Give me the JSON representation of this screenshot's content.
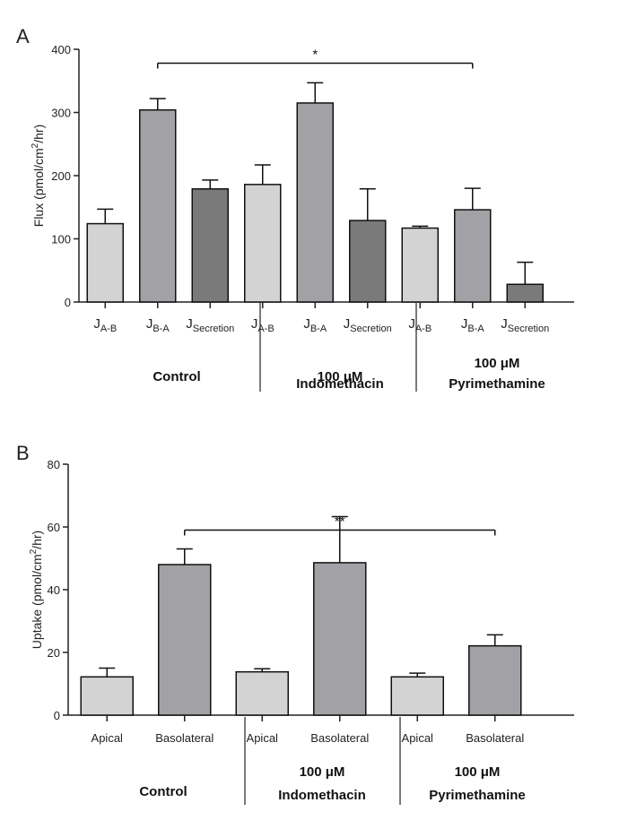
{
  "chart_data": [
    {
      "type": "bar",
      "panel": "A",
      "ylabel": "Flux (pmol/cm2/hr)",
      "ylabel_parts": {
        "pre": "Flux (pmol/cm",
        "sup": "2",
        "post": "/hr)"
      },
      "ylim": [
        0,
        400
      ],
      "yticks": [
        0,
        100,
        200,
        300,
        400
      ],
      "categories": [
        {
          "main": "J",
          "sub": "A-B"
        },
        {
          "main": "J",
          "sub": "B-A"
        },
        {
          "main": "J",
          "sub": "Secretion"
        },
        {
          "main": "J",
          "sub": "A-B"
        },
        {
          "main": "J",
          "sub": "B-A"
        },
        {
          "main": "J",
          "sub": "Secretion"
        },
        {
          "main": "J",
          "sub": "A-B"
        },
        {
          "main": "J",
          "sub": "B-A"
        },
        {
          "main": "J",
          "sub": "Secretion"
        }
      ],
      "values": [
        124,
        304,
        179,
        186,
        315,
        129,
        117,
        146,
        28
      ],
      "errors": [
        23,
        18,
        14,
        31,
        32,
        50,
        3,
        34,
        35
      ],
      "bar_colors": [
        "#d3d3d3",
        "#a2a2a6",
        "#7a7a7a",
        "#d3d3d3",
        "#a2a2a6",
        "#7a7a7a",
        "#d3d3d3",
        "#a2a2a6",
        "#7a7a7a"
      ],
      "groups": [
        {
          "lines": [
            "Control"
          ]
        },
        {
          "lines": [
            "100 μM",
            "Indomethacin"
          ]
        },
        {
          "lines": [
            "100 μM",
            "Pyrimethamine"
          ]
        }
      ],
      "significance": {
        "from": 1,
        "to": 7,
        "label": "*",
        "y": 378
      }
    },
    {
      "type": "bar",
      "panel": "B",
      "ylabel": "Uptake (pmol/cm2/hr)",
      "ylabel_parts": {
        "pre": "Uptake (pmol/cm",
        "sup": "2",
        "post": "/hr)"
      },
      "ylim": [
        0,
        80
      ],
      "yticks": [
        0,
        20,
        40,
        60,
        80
      ],
      "categories": [
        {
          "main": "Apical",
          "sub": ""
        },
        {
          "main": "Basolateral",
          "sub": ""
        },
        {
          "main": "Apical",
          "sub": ""
        },
        {
          "main": "Basolateral",
          "sub": ""
        },
        {
          "main": "Apical",
          "sub": ""
        },
        {
          "main": "Basolateral",
          "sub": ""
        }
      ],
      "values": [
        12.2,
        48.0,
        13.8,
        48.6,
        12.2,
        22.1
      ],
      "errors": [
        2.8,
        5.0,
        1.0,
        14.7,
        1.2,
        3.5
      ],
      "bar_colors": [
        "#d3d3d3",
        "#a2a2a6",
        "#d3d3d3",
        "#a2a2a6",
        "#d3d3d3",
        "#a2a2a6"
      ],
      "groups": [
        {
          "lines": [
            "Control"
          ]
        },
        {
          "lines": [
            "100 μM",
            "Indomethacin"
          ]
        },
        {
          "lines": [
            "100 μM",
            "Pyrimethamine"
          ]
        }
      ],
      "significance": {
        "from": 1,
        "to": 5,
        "label": "**",
        "y": 59
      }
    }
  ]
}
